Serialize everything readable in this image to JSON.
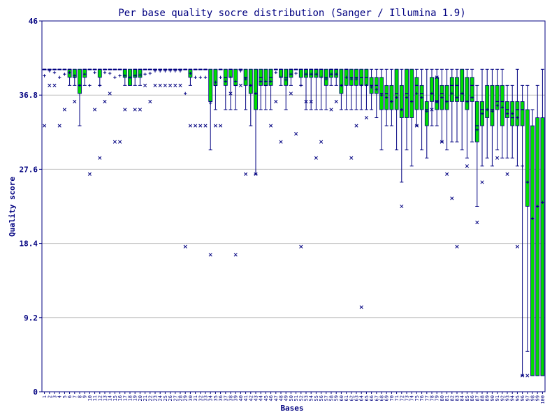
{
  "chart_data": {
    "type": "boxplot",
    "title": "Per base quality socre distribution (Sanger / Illumina 1.9)",
    "xlabel": "Bases",
    "ylabel": "Quality score",
    "ylim": [
      0,
      46
    ],
    "yticks": [
      "0",
      "9.2",
      "18.4",
      "27.6",
      "36.8",
      "46"
    ],
    "colors": {
      "box": "#00dd00",
      "line": "#000080",
      "axis": "#000080",
      "grid": "#c0c0c0"
    },
    "series": [
      {
        "pos": 1,
        "q1": 40,
        "median": 40,
        "q3": 40,
        "low": 40,
        "high": 40,
        "mean": 39.2,
        "outliers": [
          33
        ]
      },
      {
        "pos": 2,
        "q1": 40,
        "median": 40,
        "q3": 40,
        "low": 40,
        "high": 40,
        "mean": 39.8,
        "outliers": [
          38
        ]
      },
      {
        "pos": 3,
        "q1": 40,
        "median": 40,
        "q3": 40,
        "low": 40,
        "high": 40,
        "mean": 39.6,
        "outliers": [
          38
        ]
      },
      {
        "pos": 4,
        "q1": 40,
        "median": 40,
        "q3": 40,
        "low": 40,
        "high": 40,
        "mean": 39.0,
        "outliers": [
          33
        ]
      },
      {
        "pos": 5,
        "q1": 40,
        "median": 40,
        "q3": 40,
        "low": 40,
        "high": 40,
        "mean": 39.4,
        "outliers": [
          35
        ]
      },
      {
        "pos": 6,
        "q1": 39,
        "median": 40,
        "q3": 40,
        "low": 38,
        "high": 40,
        "mean": 39.6,
        "outliers": []
      },
      {
        "pos": 7,
        "q1": 39,
        "median": 39,
        "q3": 40,
        "low": 38,
        "high": 40,
        "mean": 39.2,
        "outliers": [
          36
        ]
      },
      {
        "pos": 8,
        "q1": 37,
        "median": 38,
        "q3": 40,
        "low": 33,
        "high": 40,
        "mean": 38.0,
        "outliers": []
      },
      {
        "pos": 9,
        "q1": 39,
        "median": 40,
        "q3": 40,
        "low": 38,
        "high": 40,
        "mean": 39.4,
        "outliers": []
      },
      {
        "pos": 10,
        "q1": 40,
        "median": 40,
        "q3": 40,
        "low": 40,
        "high": 40,
        "mean": 38.0,
        "outliers": [
          27
        ]
      },
      {
        "pos": 11,
        "q1": 40,
        "median": 40,
        "q3": 40,
        "low": 40,
        "high": 40,
        "mean": 39.6,
        "outliers": [
          35
        ]
      },
      {
        "pos": 12,
        "q1": 39,
        "median": 40,
        "q3": 40,
        "low": 38,
        "high": 40,
        "mean": 38.0,
        "outliers": [
          29
        ]
      },
      {
        "pos": 13,
        "q1": 40,
        "median": 40,
        "q3": 40,
        "low": 40,
        "high": 40,
        "mean": 39.6,
        "outliers": [
          36
        ]
      },
      {
        "pos": 14,
        "q1": 40,
        "median": 40,
        "q3": 40,
        "low": 40,
        "high": 40,
        "mean": 39.5,
        "outliers": [
          37
        ]
      },
      {
        "pos": 15,
        "q1": 40,
        "median": 40,
        "q3": 40,
        "low": 40,
        "high": 40,
        "mean": 39.0,
        "outliers": [
          31
        ]
      },
      {
        "pos": 16,
        "q1": 40,
        "median": 40,
        "q3": 40,
        "low": 40,
        "high": 40,
        "mean": 39.2,
        "outliers": [
          31
        ]
      },
      {
        "pos": 17,
        "q1": 39,
        "median": 40,
        "q3": 40,
        "low": 38,
        "high": 40,
        "mean": 39.2,
        "outliers": [
          35
        ]
      },
      {
        "pos": 18,
        "q1": 38,
        "median": 39,
        "q3": 40,
        "low": 38,
        "high": 40,
        "mean": 39.0,
        "outliers": []
      },
      {
        "pos": 19,
        "q1": 39,
        "median": 40,
        "q3": 40,
        "low": 38,
        "high": 40,
        "mean": 39.2,
        "outliers": [
          35
        ]
      },
      {
        "pos": 20,
        "q1": 39,
        "median": 40,
        "q3": 40,
        "low": 38,
        "high": 40,
        "mean": 39.3,
        "outliers": [
          35
        ]
      },
      {
        "pos": 21,
        "q1": 40,
        "median": 40,
        "q3": 40,
        "low": 40,
        "high": 40,
        "mean": 39.4,
        "outliers": [
          38
        ]
      },
      {
        "pos": 22,
        "q1": 40,
        "median": 40,
        "q3": 40,
        "low": 40,
        "high": 40,
        "mean": 39.5,
        "outliers": [
          36
        ]
      },
      {
        "pos": 23,
        "q1": 40,
        "median": 40,
        "q3": 40,
        "low": 40,
        "high": 40,
        "mean": 39.8,
        "outliers": [
          38
        ]
      },
      {
        "pos": 24,
        "q1": 40,
        "median": 40,
        "q3": 40,
        "low": 40,
        "high": 40,
        "mean": 39.8,
        "outliers": [
          38
        ]
      },
      {
        "pos": 25,
        "q1": 40,
        "median": 40,
        "q3": 40,
        "low": 40,
        "high": 40,
        "mean": 39.8,
        "outliers": [
          38
        ]
      },
      {
        "pos": 26,
        "q1": 40,
        "median": 40,
        "q3": 40,
        "low": 40,
        "high": 40,
        "mean": 39.8,
        "outliers": [
          38
        ]
      },
      {
        "pos": 27,
        "q1": 40,
        "median": 40,
        "q3": 40,
        "low": 40,
        "high": 40,
        "mean": 39.8,
        "outliers": [
          38
        ]
      },
      {
        "pos": 28,
        "q1": 40,
        "median": 40,
        "q3": 40,
        "low": 40,
        "high": 40,
        "mean": 39.8,
        "outliers": [
          38
        ]
      },
      {
        "pos": 29,
        "q1": 40,
        "median": 40,
        "q3": 40,
        "low": 40,
        "high": 40,
        "mean": 37.0,
        "outliers": [
          18
        ]
      },
      {
        "pos": 30,
        "q1": 39,
        "median": 40,
        "q3": 40,
        "low": 38,
        "high": 40,
        "mean": 39.5,
        "outliers": [
          33
        ]
      },
      {
        "pos": 31,
        "q1": 40,
        "median": 40,
        "q3": 40,
        "low": 40,
        "high": 40,
        "mean": 39.0,
        "outliers": [
          33
        ]
      },
      {
        "pos": 32,
        "q1": 40,
        "median": 40,
        "q3": 40,
        "low": 40,
        "high": 40,
        "mean": 39.0,
        "outliers": [
          33
        ]
      },
      {
        "pos": 33,
        "q1": 40,
        "median": 40,
        "q3": 40,
        "low": 40,
        "high": 40,
        "mean": 39.0,
        "outliers": [
          33
        ]
      },
      {
        "pos": 34,
        "q1": 36,
        "median": 36,
        "q3": 40,
        "low": 30,
        "high": 40,
        "mean": 35.8,
        "outliers": [
          17
        ]
      },
      {
        "pos": 35,
        "q1": 38,
        "median": 38,
        "q3": 40,
        "low": 35,
        "high": 40,
        "mean": 38.4,
        "outliers": [
          33
        ]
      },
      {
        "pos": 36,
        "q1": 40,
        "median": 40,
        "q3": 40,
        "low": 40,
        "high": 40,
        "mean": 39.0,
        "outliers": [
          33
        ]
      },
      {
        "pos": 37,
        "q1": 38,
        "median": 39,
        "q3": 40,
        "low": 35,
        "high": 40,
        "mean": 38.5,
        "outliers": []
      },
      {
        "pos": 38,
        "q1": 39,
        "median": 40,
        "q3": 40,
        "low": 35,
        "high": 40,
        "mean": 39.0,
        "outliers": [
          37
        ]
      },
      {
        "pos": 39,
        "q1": 38,
        "median": 38,
        "q3": 40,
        "low": 35,
        "high": 40,
        "mean": 38.5,
        "outliers": [
          17
        ]
      },
      {
        "pos": 40,
        "q1": 40,
        "median": 40,
        "q3": 40,
        "low": 40,
        "high": 40,
        "mean": 39.8,
        "outliers": [
          38
        ]
      },
      {
        "pos": 41,
        "q1": 38,
        "median": 39,
        "q3": 40,
        "low": 35,
        "high": 40,
        "mean": 38.8,
        "outliers": [
          27
        ]
      },
      {
        "pos": 42,
        "q1": 37,
        "median": 38,
        "q3": 40,
        "low": 33,
        "high": 40,
        "mean": 38.0,
        "outliers": []
      },
      {
        "pos": 43,
        "q1": 35,
        "median": 37,
        "q3": 40,
        "low": 27,
        "high": 40,
        "mean": 37.0,
        "outliers": [
          27
        ]
      },
      {
        "pos": 44,
        "q1": 38,
        "median": 39,
        "q3": 40,
        "low": 35,
        "high": 40,
        "mean": 38.5,
        "outliers": []
      },
      {
        "pos": 45,
        "q1": 38,
        "median": 38,
        "q3": 40,
        "low": 35,
        "high": 40,
        "mean": 38.5,
        "outliers": []
      },
      {
        "pos": 46,
        "q1": 38,
        "median": 39,
        "q3": 40,
        "low": 35,
        "high": 40,
        "mean": 38.5,
        "outliers": [
          33
        ]
      },
      {
        "pos": 47,
        "q1": 40,
        "median": 40,
        "q3": 40,
        "low": 40,
        "high": 40,
        "mean": 39.6,
        "outliers": [
          36
        ]
      },
      {
        "pos": 48,
        "q1": 39,
        "median": 40,
        "q3": 40,
        "low": 38,
        "high": 40,
        "mean": 39.0,
        "outliers": [
          31
        ]
      },
      {
        "pos": 49,
        "q1": 38,
        "median": 39,
        "q3": 40,
        "low": 35,
        "high": 40,
        "mean": 38.7,
        "outliers": []
      },
      {
        "pos": 50,
        "q1": 39,
        "median": 40,
        "q3": 40,
        "low": 38,
        "high": 40,
        "mean": 39.4,
        "outliers": [
          37
        ]
      },
      {
        "pos": 51,
        "q1": 40,
        "median": 40,
        "q3": 40,
        "low": 40,
        "high": 40,
        "mean": 39.5,
        "outliers": [
          32
        ]
      },
      {
        "pos": 52,
        "q1": 39,
        "median": 40,
        "q3": 40,
        "low": 38,
        "high": 40,
        "mean": 38.0,
        "outliers": [
          18
        ]
      },
      {
        "pos": 53,
        "q1": 39,
        "median": 40,
        "q3": 40,
        "low": 35,
        "high": 40,
        "mean": 39.4,
        "outliers": [
          36
        ]
      },
      {
        "pos": 54,
        "q1": 39,
        "median": 40,
        "q3": 40,
        "low": 35,
        "high": 40,
        "mean": 39.4,
        "outliers": [
          36
        ]
      },
      {
        "pos": 55,
        "q1": 39,
        "median": 40,
        "q3": 40,
        "low": 35,
        "high": 40,
        "mean": 39.4,
        "outliers": [
          29
        ]
      },
      {
        "pos": 56,
        "q1": 39,
        "median": 40,
        "q3": 40,
        "low": 35,
        "high": 40,
        "mean": 39.0,
        "outliers": [
          31
        ]
      },
      {
        "pos": 57,
        "q1": 38,
        "median": 39,
        "q3": 40,
        "low": 35,
        "high": 40,
        "mean": 38.8,
        "outliers": []
      },
      {
        "pos": 58,
        "q1": 39,
        "median": 40,
        "q3": 40,
        "low": 38,
        "high": 40,
        "mean": 39.4,
        "outliers": [
          35
        ]
      },
      {
        "pos": 59,
        "q1": 39,
        "median": 40,
        "q3": 40,
        "low": 38,
        "high": 40,
        "mean": 39.4,
        "outliers": [
          36
        ]
      },
      {
        "pos": 60,
        "q1": 37,
        "median": 38,
        "q3": 40,
        "low": 35,
        "high": 40,
        "mean": 38.0,
        "outliers": []
      },
      {
        "pos": 61,
        "q1": 38,
        "median": 40,
        "q3": 40,
        "low": 35,
        "high": 40,
        "mean": 39.0,
        "outliers": []
      },
      {
        "pos": 62,
        "q1": 38,
        "median": 39,
        "q3": 40,
        "low": 35,
        "high": 40,
        "mean": 38.8,
        "outliers": [
          29
        ]
      },
      {
        "pos": 63,
        "q1": 38,
        "median": 39,
        "q3": 40,
        "low": 35,
        "high": 40,
        "mean": 38.8,
        "outliers": [
          33
        ]
      },
      {
        "pos": 64,
        "q1": 38,
        "median": 39,
        "q3": 40,
        "low": 35,
        "high": 40,
        "mean": 38.0,
        "outliers": [
          10.5
        ]
      },
      {
        "pos": 65,
        "q1": 38,
        "median": 39,
        "q3": 40,
        "low": 35,
        "high": 40,
        "mean": 38.0,
        "outliers": [
          34
        ]
      },
      {
        "pos": 66,
        "q1": 37,
        "median": 38,
        "q3": 39,
        "low": 35,
        "high": 40,
        "mean": 37.8,
        "outliers": []
      },
      {
        "pos": 67,
        "q1": 37,
        "median": 38,
        "q3": 39,
        "low": 34,
        "high": 40,
        "mean": 37.5,
        "outliers": []
      },
      {
        "pos": 68,
        "q1": 35,
        "median": 37,
        "q3": 39,
        "low": 30,
        "high": 40,
        "mean": 36.8,
        "outliers": []
      },
      {
        "pos": 69,
        "q1": 35,
        "median": 37,
        "q3": 38,
        "low": 33,
        "high": 40,
        "mean": 36.5,
        "outliers": []
      },
      {
        "pos": 70,
        "q1": 35,
        "median": 36,
        "q3": 38,
        "low": 33,
        "high": 40,
        "mean": 36.0,
        "outliers": []
      },
      {
        "pos": 71,
        "q1": 35,
        "median": 37,
        "q3": 40,
        "low": 30,
        "high": 40,
        "mean": 36.5,
        "outliers": []
      },
      {
        "pos": 72,
        "q1": 34,
        "median": 35,
        "q3": 38,
        "low": 26,
        "high": 40,
        "mean": 35.0,
        "outliers": [
          23
        ]
      },
      {
        "pos": 73,
        "q1": 34,
        "median": 37,
        "q3": 40,
        "low": 30,
        "high": 40,
        "mean": 36.5,
        "outliers": []
      },
      {
        "pos": 74,
        "q1": 34,
        "median": 36,
        "q3": 40,
        "low": 28,
        "high": 40,
        "mean": 36.0,
        "outliers": []
      },
      {
        "pos": 75,
        "q1": 35,
        "median": 38,
        "q3": 39,
        "low": 33,
        "high": 40,
        "mean": 37.0,
        "outliers": [
          33
        ]
      },
      {
        "pos": 76,
        "q1": 35,
        "median": 37,
        "q3": 38,
        "low": 30,
        "high": 40,
        "mean": 36.5,
        "outliers": []
      },
      {
        "pos": 77,
        "q1": 33,
        "median": 35,
        "q3": 36,
        "low": 29,
        "high": 40,
        "mean": 34.8,
        "outliers": []
      },
      {
        "pos": 78,
        "q1": 36,
        "median": 37,
        "q3": 39,
        "low": 33,
        "high": 40,
        "mean": 37.0,
        "outliers": [
          35
        ]
      },
      {
        "pos": 79,
        "q1": 35,
        "median": 36,
        "q3": 39,
        "low": 33,
        "high": 40,
        "mean": 36.0,
        "outliers": [
          36,
          39
        ]
      },
      {
        "pos": 80,
        "q1": 35,
        "median": 37,
        "q3": 38,
        "low": 31,
        "high": 40,
        "mean": 36.5,
        "outliers": [
          31
        ]
      },
      {
        "pos": 81,
        "q1": 35,
        "median": 36,
        "q3": 38,
        "low": 30,
        "high": 40,
        "mean": 36.0,
        "outliers": [
          27
        ]
      },
      {
        "pos": 82,
        "q1": 36,
        "median": 38,
        "q3": 39,
        "low": 31,
        "high": 40,
        "mean": 37.0,
        "outliers": [
          24
        ]
      },
      {
        "pos": 83,
        "q1": 36,
        "median": 38,
        "q3": 39,
        "low": 31,
        "high": 40,
        "mean": 36.5,
        "outliers": [
          18
        ]
      },
      {
        "pos": 84,
        "q1": 36,
        "median": 37,
        "q3": 40,
        "low": 30,
        "high": 40,
        "mean": 37.0,
        "outliers": []
      },
      {
        "pos": 85,
        "q1": 35,
        "median": 36,
        "q3": 39,
        "low": 29,
        "high": 40,
        "mean": 36.0,
        "outliers": [
          28
        ]
      },
      {
        "pos": 86,
        "q1": 36,
        "median": 38,
        "q3": 39,
        "low": 31,
        "high": 40,
        "mean": 36.5,
        "outliers": []
      },
      {
        "pos": 87,
        "q1": 31,
        "median": 33,
        "q3": 36,
        "low": 23,
        "high": 38,
        "mean": 32.5,
        "outliers": [
          21
        ]
      },
      {
        "pos": 88,
        "q1": 33,
        "median": 35,
        "q3": 36,
        "low": 28,
        "high": 40,
        "mean": 34.5,
        "outliers": [
          26
        ]
      },
      {
        "pos": 89,
        "q1": 34,
        "median": 35,
        "q3": 38,
        "low": 29,
        "high": 40,
        "mean": 35.0,
        "outliers": []
      },
      {
        "pos": 90,
        "q1": 33,
        "median": 35,
        "q3": 38,
        "low": 28,
        "high": 40,
        "mean": 34.8,
        "outliers": []
      },
      {
        "pos": 91,
        "q1": 35,
        "median": 36,
        "q3": 38,
        "low": 30,
        "high": 40,
        "mean": 35.5,
        "outliers": [
          29
        ]
      },
      {
        "pos": 92,
        "q1": 33,
        "median": 36,
        "q3": 38,
        "low": 29,
        "high": 40,
        "mean": 35.3,
        "outliers": []
      },
      {
        "pos": 93,
        "q1": 34,
        "median": 35,
        "q3": 36,
        "low": 29,
        "high": 38,
        "mean": 34.5,
        "outliers": [
          27
        ]
      },
      {
        "pos": 94,
        "q1": 33,
        "median": 34,
        "q3": 36,
        "low": 29,
        "high": 38,
        "mean": 34.5,
        "outliers": []
      },
      {
        "pos": 95,
        "q1": 33,
        "median": 35,
        "q3": 36,
        "low": 28,
        "high": 40,
        "mean": 34.0,
        "outliers": [
          18
        ]
      },
      {
        "pos": 96,
        "q1": 33,
        "median": 35,
        "q3": 36,
        "low": 2,
        "high": 38,
        "mean": 28.0,
        "outliers": [
          2
        ]
      },
      {
        "pos": 97,
        "q1": 23,
        "median": 26,
        "q3": 35,
        "low": 5,
        "high": 38,
        "mean": 26.0,
        "outliers": [
          2
        ]
      },
      {
        "pos": 98,
        "q1": 2,
        "median": 21.5,
        "q3": 33,
        "low": 2,
        "high": 35,
        "mean": 21.5,
        "outliers": []
      },
      {
        "pos": 99,
        "q1": 2,
        "median": 23,
        "q3": 34,
        "low": 2,
        "high": 38,
        "mean": 23.0,
        "outliers": []
      },
      {
        "pos": 100,
        "q1": 2,
        "median": 23.5,
        "q3": 34,
        "low": 2,
        "high": 40,
        "mean": 23.5,
        "outliers": []
      }
    ]
  }
}
